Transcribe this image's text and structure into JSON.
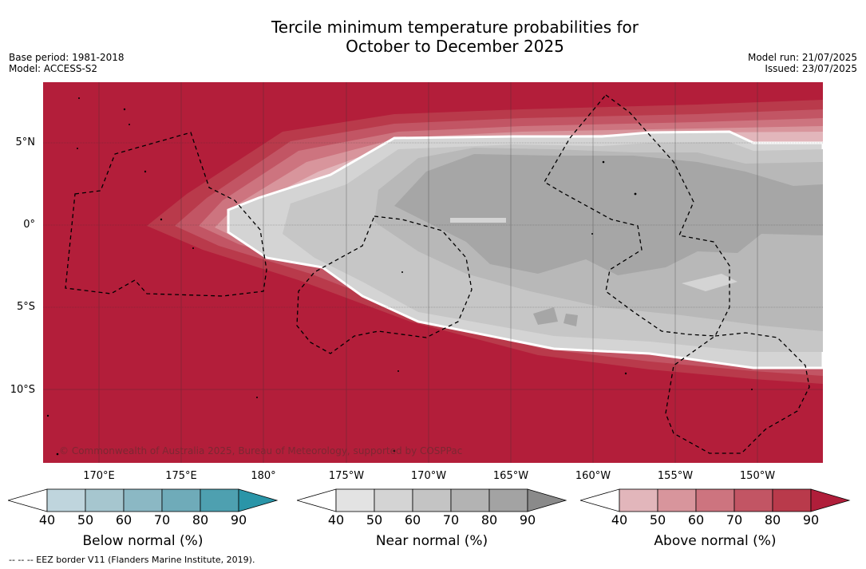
{
  "title_line1": "Tercile minimum temperature probabilities for",
  "title_line2": "October to December 2025",
  "meta_left": {
    "base_period": "Base period: 1981-2018",
    "model": "Model: ACCESS-S2"
  },
  "meta_right": {
    "model_run": "Model run: 21/07/2025",
    "issued": "Issued: 23/07/2025"
  },
  "lat_labels": [
    "5°N",
    "0°",
    "5°S",
    "10°S"
  ],
  "lon_labels": [
    "170°E",
    "175°E",
    "180°",
    "175°W",
    "170°W",
    "165°W",
    "160°W",
    "155°W",
    "150°W"
  ],
  "copyright": "© Commonwealth of Australia 2025, Bureau of Meteorology, supported by COSPPac",
  "colorbars": [
    {
      "label": "Below normal (%)",
      "ticks": [
        "40",
        "50",
        "60",
        "70",
        "80",
        "90"
      ],
      "colors": [
        "#bfd5dd",
        "#a6c6cf",
        "#8bb8c4",
        "#6fabb9",
        "#4ea0b0",
        "#2a95a8"
      ]
    },
    {
      "label": "Near normal (%)",
      "ticks": [
        "40",
        "50",
        "60",
        "70",
        "80",
        "90"
      ],
      "colors": [
        "#e3e3e3",
        "#d4d4d4",
        "#c4c4c4",
        "#b3b3b3",
        "#a3a3a3",
        "#8a8a8a"
      ]
    },
    {
      "label": "Above normal (%)",
      "ticks": [
        "40",
        "50",
        "60",
        "70",
        "80",
        "90"
      ],
      "colors": [
        "#e2b6bb",
        "#d8959c",
        "#cd747f",
        "#c25564",
        "#b93a4b",
        "#b01e3a"
      ]
    }
  ],
  "footnote": "--  --  -- EEZ border V11 (Flanders Marine Institute, 2019).",
  "colors": {
    "above_max": "#b31e3a",
    "white_boundary": "#ffffff"
  }
}
